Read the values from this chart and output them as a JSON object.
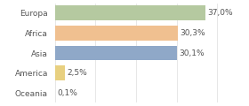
{
  "categories": [
    "Europa",
    "Africa",
    "Asia",
    "America",
    "Oceania"
  ],
  "values": [
    37.0,
    30.3,
    30.1,
    2.5,
    0.1
  ],
  "labels": [
    "37,0%",
    "30,3%",
    "30,1%",
    "2,5%",
    "0,1%"
  ],
  "bar_colors": [
    "#b5c9a0",
    "#f0c090",
    "#8fa8c8",
    "#e8d080",
    "#cccccc"
  ],
  "background_color": "#ffffff",
  "xlim": [
    0,
    46
  ],
  "bar_height": 0.75,
  "label_fontsize": 6.5,
  "tick_fontsize": 6.5,
  "grid_color": "#dddddd"
}
